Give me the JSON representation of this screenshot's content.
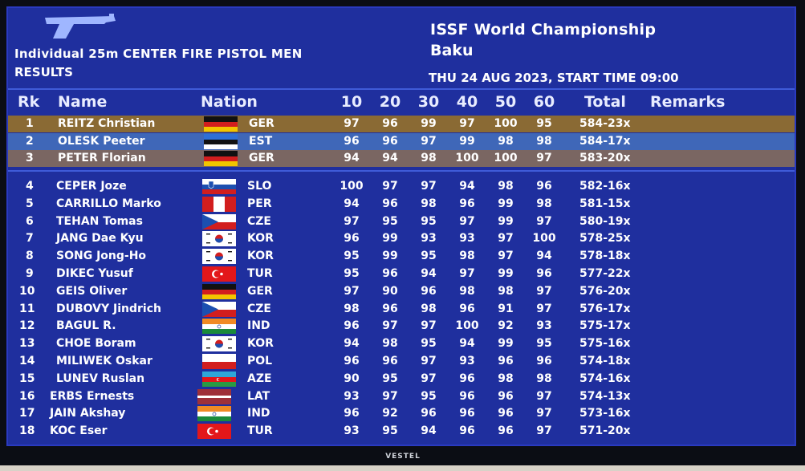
{
  "event": {
    "title": "Individual 25m CENTER FIRE PISTOL MEN",
    "subtitle": "RESULTS",
    "championship": "ISSF World Championship",
    "city": "Baku",
    "datetime": "THU 24 AUG 2023, START TIME 09:00"
  },
  "headers": {
    "rank": "Rk",
    "name": "Name",
    "nation": "Nation",
    "s1": "10",
    "s2": "20",
    "s3": "30",
    "s4": "40",
    "s5": "50",
    "s6": "60",
    "total": "Total",
    "remarks": "Remarks"
  },
  "colors": {
    "screen_bg": "#1f2f9e",
    "gold": "#8a6a34",
    "silver": "#3f67b8",
    "bronze": "#7a6662"
  },
  "tv_brand": "VESTEL",
  "rows": [
    {
      "rank": "1",
      "name": "REITZ Christian",
      "nation": "GER",
      "s": [
        "97",
        "96",
        "99",
        "97",
        "100",
        "95"
      ],
      "total": "584-23x",
      "flag": "ger",
      "medal": "gold"
    },
    {
      "rank": "2",
      "name": "OLESK Peeter",
      "nation": "EST",
      "s": [
        "96",
        "96",
        "97",
        "99",
        "98",
        "98"
      ],
      "total": "584-17x",
      "flag": "est",
      "medal": "silver"
    },
    {
      "rank": "3",
      "name": "PETER Florian",
      "nation": "GER",
      "s": [
        "94",
        "94",
        "98",
        "100",
        "100",
        "97"
      ],
      "total": "583-20x",
      "flag": "ger",
      "medal": "bronze"
    },
    {
      "rank": "4",
      "name": "CEPER Joze",
      "nation": "SLO",
      "s": [
        "100",
        "97",
        "97",
        "94",
        "98",
        "96"
      ],
      "total": "582-16x",
      "flag": "slo"
    },
    {
      "rank": "5",
      "name": "CARRILLO Marko",
      "nation": "PER",
      "s": [
        "94",
        "96",
        "98",
        "96",
        "99",
        "98"
      ],
      "total": "581-15x",
      "flag": "per"
    },
    {
      "rank": "6",
      "name": "TEHAN Tomas",
      "nation": "CZE",
      "s": [
        "97",
        "95",
        "95",
        "97",
        "99",
        "97"
      ],
      "total": "580-19x",
      "flag": "cze"
    },
    {
      "rank": "7",
      "name": "JANG Dae Kyu",
      "nation": "KOR",
      "s": [
        "96",
        "99",
        "93",
        "93",
        "97",
        "100"
      ],
      "total": "578-25x",
      "flag": "kor"
    },
    {
      "rank": "8",
      "name": "SONG Jong-Ho",
      "nation": "KOR",
      "s": [
        "95",
        "99",
        "95",
        "98",
        "97",
        "94"
      ],
      "total": "578-18x",
      "flag": "kor"
    },
    {
      "rank": "9",
      "name": "DIKEC Yusuf",
      "nation": "TUR",
      "s": [
        "95",
        "96",
        "94",
        "97",
        "99",
        "96"
      ],
      "total": "577-22x",
      "flag": "tur"
    },
    {
      "rank": "10",
      "name": "GEIS Oliver",
      "nation": "GER",
      "s": [
        "97",
        "90",
        "96",
        "98",
        "98",
        "97"
      ],
      "total": "576-20x",
      "flag": "ger"
    },
    {
      "rank": "11",
      "name": "DUBOVY Jindrich",
      "nation": "CZE",
      "s": [
        "98",
        "96",
        "98",
        "96",
        "91",
        "97"
      ],
      "total": "576-17x",
      "flag": "cze"
    },
    {
      "rank": "12",
      "name": "BAGUL R.",
      "nation": "IND",
      "s": [
        "96",
        "97",
        "97",
        "100",
        "92",
        "93"
      ],
      "total": "575-17x",
      "flag": "ind"
    },
    {
      "rank": "13",
      "name": "CHOE Boram",
      "nation": "KOR",
      "s": [
        "94",
        "98",
        "95",
        "94",
        "99",
        "95"
      ],
      "total": "575-16x",
      "flag": "kor"
    },
    {
      "rank": "14",
      "name": "MILIWEK Oskar",
      "nation": "POL",
      "s": [
        "96",
        "96",
        "97",
        "93",
        "96",
        "96"
      ],
      "total": "574-18x",
      "flag": "pol"
    },
    {
      "rank": "15",
      "name": "LUNEV Ruslan",
      "nation": "AZE",
      "s": [
        "90",
        "95",
        "97",
        "96",
        "98",
        "98"
      ],
      "total": "574-16x",
      "flag": "aze"
    },
    {
      "rank": "16",
      "name": "ERBS Ernests",
      "nation": "LAT",
      "s": [
        "93",
        "97",
        "95",
        "96",
        "96",
        "97"
      ],
      "total": "574-13x",
      "flag": "lat"
    },
    {
      "rank": "17",
      "name": "JAIN Akshay",
      "nation": "IND",
      "s": [
        "96",
        "92",
        "96",
        "96",
        "96",
        "97"
      ],
      "total": "573-16x",
      "flag": "ind"
    },
    {
      "rank": "18",
      "name": "KOC Eser",
      "nation": "TUR",
      "s": [
        "93",
        "95",
        "94",
        "96",
        "96",
        "97"
      ],
      "total": "571-20x",
      "flag": "tur"
    }
  ]
}
